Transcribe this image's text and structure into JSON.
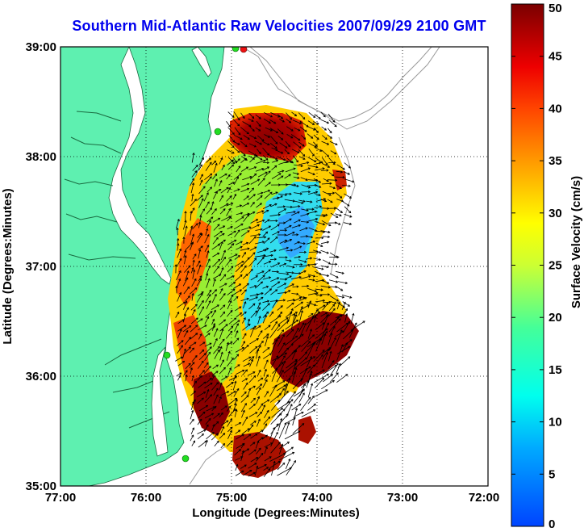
{
  "title": "Southern Mid-Atlantic Raw Velocities 2007/09/29 2100 GMT",
  "xlabel": "Longitude (Degrees:Minutes)",
  "ylabel": "Latitude (Degrees:Minutes)",
  "x_ticks": [
    "77:00",
    "76:00",
    "75:00",
    "74:00",
    "73:00",
    "72:00"
  ],
  "y_ticks": [
    "39:00",
    "38:00",
    "37:00",
    "36:00",
    "35:00"
  ],
  "colorbar": {
    "label": "Surface Velocity (cm/s)",
    "ticks": [
      "50",
      "45",
      "40",
      "35",
      "30",
      "25",
      "20",
      "15",
      "10",
      "5",
      "0"
    ],
    "range": [
      0,
      50
    ]
  },
  "colors": {
    "land": "#5ef0b0",
    "water": "#ffffff",
    "title": "#0000ee",
    "grid": "#000000",
    "bathymetry": "#9a9a9a",
    "vectors": "#000000",
    "station_green": "#22dd22",
    "station_red": "#ee1111"
  }
}
